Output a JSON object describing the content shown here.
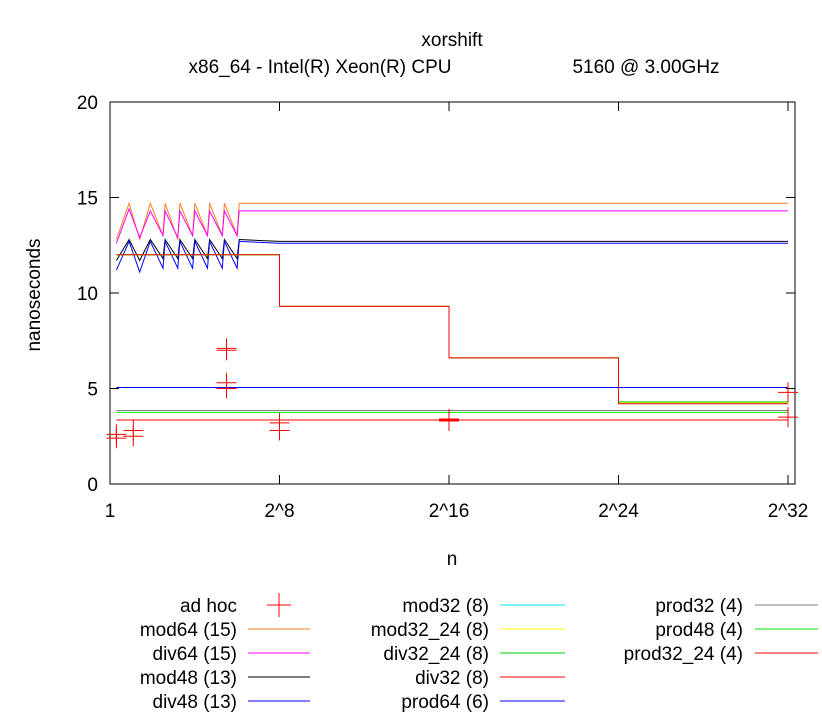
{
  "chart_data": {
    "type": "line",
    "title": "xorshift",
    "subtitle_left": "x86_64 - Intel(R) Xeon(R) CPU",
    "subtitle_right": "5160  @ 3.00GHz",
    "xlabel": "n",
    "ylabel": "nanoseconds",
    "x_scale": "log2",
    "xlim": [
      0,
      32
    ],
    "ylim": [
      0,
      20
    ],
    "x_ticks": [
      {
        "value": 0,
        "label": "1"
      },
      {
        "value": 8,
        "label": "2^8"
      },
      {
        "value": 16,
        "label": "2^16"
      },
      {
        "value": 24,
        "label": "2^24"
      },
      {
        "value": 32,
        "label": "2^32"
      }
    ],
    "y_ticks": [
      {
        "value": 0,
        "label": "0"
      },
      {
        "value": 5,
        "label": "5"
      },
      {
        "value": 10,
        "label": "10"
      },
      {
        "value": 15,
        "label": "15"
      },
      {
        "value": 20,
        "label": "20"
      }
    ],
    "legend_position": "bottom",
    "series": [
      {
        "name": "ad hoc",
        "color": "#ff0000",
        "style": "points",
        "points": [
          [
            0.3,
            2.4
          ],
          [
            0.3,
            2.6
          ],
          [
            1.1,
            2.5
          ],
          [
            1.1,
            2.8
          ],
          [
            5.5,
            7.0
          ],
          [
            5.5,
            7.1
          ],
          [
            5.5,
            5.0
          ],
          [
            5.5,
            5.3
          ],
          [
            8.0,
            2.8
          ],
          [
            8.0,
            3.2
          ],
          [
            16.0,
            3.3
          ],
          [
            16.0,
            3.4
          ],
          [
            32.0,
            3.5
          ],
          [
            32.0,
            4.8
          ]
        ]
      },
      {
        "name": "mod64 (15)",
        "color": "#ff7f27",
        "style": "line",
        "points": [
          [
            0.3,
            12.8
          ],
          [
            0.9,
            14.7
          ],
          [
            1.4,
            12.8
          ],
          [
            1.9,
            14.7
          ],
          [
            2.5,
            13.0
          ],
          [
            2.6,
            14.7
          ],
          [
            3.2,
            12.8
          ],
          [
            3.3,
            14.7
          ],
          [
            3.9,
            13.0
          ],
          [
            4.0,
            14.7
          ],
          [
            4.6,
            13.0
          ],
          [
            4.7,
            14.7
          ],
          [
            5.3,
            13.0
          ],
          [
            5.4,
            14.7
          ],
          [
            6.0,
            13.0
          ],
          [
            6.1,
            14.7
          ],
          [
            8.0,
            14.7
          ],
          [
            32.0,
            14.7
          ]
        ]
      },
      {
        "name": "div64 (15)",
        "color": "#ff00ff",
        "style": "line",
        "points": [
          [
            0.3,
            12.6
          ],
          [
            0.9,
            14.4
          ],
          [
            1.4,
            12.9
          ],
          [
            1.9,
            14.3
          ],
          [
            2.5,
            13.0
          ],
          [
            2.6,
            14.3
          ],
          [
            3.2,
            12.9
          ],
          [
            3.3,
            14.3
          ],
          [
            3.9,
            13.0
          ],
          [
            4.0,
            14.3
          ],
          [
            4.6,
            13.0
          ],
          [
            4.7,
            14.3
          ],
          [
            5.3,
            13.0
          ],
          [
            5.4,
            14.3
          ],
          [
            6.0,
            13.0
          ],
          [
            6.1,
            14.3
          ],
          [
            8.0,
            14.3
          ],
          [
            32.0,
            14.3
          ]
        ]
      },
      {
        "name": "mod48 (13)",
        "color": "#000000",
        "style": "line",
        "points": [
          [
            0.3,
            11.7
          ],
          [
            0.9,
            12.8
          ],
          [
            1.4,
            11.7
          ],
          [
            1.9,
            12.8
          ],
          [
            2.5,
            11.8
          ],
          [
            2.6,
            12.8
          ],
          [
            3.2,
            11.8
          ],
          [
            3.3,
            12.8
          ],
          [
            3.9,
            11.8
          ],
          [
            4.0,
            12.8
          ],
          [
            4.6,
            11.8
          ],
          [
            4.7,
            12.8
          ],
          [
            5.3,
            11.8
          ],
          [
            5.4,
            12.8
          ],
          [
            6.0,
            11.8
          ],
          [
            6.1,
            12.8
          ],
          [
            8.0,
            12.7
          ],
          [
            32.0,
            12.7
          ]
        ]
      },
      {
        "name": "div48 (13)",
        "color": "#0000ff",
        "style": "line",
        "points": [
          [
            0.3,
            11.2
          ],
          [
            0.9,
            12.7
          ],
          [
            1.4,
            11.1
          ],
          [
            1.9,
            12.7
          ],
          [
            2.5,
            11.3
          ],
          [
            2.6,
            12.7
          ],
          [
            3.2,
            11.3
          ],
          [
            3.3,
            12.7
          ],
          [
            3.9,
            11.3
          ],
          [
            4.0,
            12.7
          ],
          [
            4.6,
            11.3
          ],
          [
            4.7,
            12.7
          ],
          [
            5.3,
            11.3
          ],
          [
            5.4,
            12.7
          ],
          [
            6.0,
            11.3
          ],
          [
            6.1,
            12.7
          ],
          [
            8.0,
            12.6
          ],
          [
            32.0,
            12.6
          ]
        ]
      },
      {
        "name": "mod32 (8)",
        "color": "#00e5ee",
        "style": "line",
        "points": [
          [
            0.3,
            12.0
          ],
          [
            8.0,
            12.0
          ],
          [
            8.0,
            9.3
          ],
          [
            16.0,
            9.3
          ],
          [
            16.0,
            6.6
          ],
          [
            24.0,
            6.6
          ],
          [
            24.0,
            4.25
          ],
          [
            32.0,
            4.25
          ]
        ]
      },
      {
        "name": "mod32_24 (8)",
        "color": "#ffff00",
        "style": "line",
        "points": [
          [
            0.3,
            12.0
          ],
          [
            8.0,
            12.0
          ],
          [
            8.0,
            9.3
          ],
          [
            16.0,
            9.3
          ],
          [
            16.0,
            6.6
          ],
          [
            24.0,
            6.6
          ],
          [
            24.0,
            4.25
          ],
          [
            32.0,
            4.25
          ]
        ]
      },
      {
        "name": "div32_24 (8)",
        "color": "#00cc00",
        "style": "line",
        "points": [
          [
            0.3,
            12.0
          ],
          [
            8.0,
            12.0
          ],
          [
            8.0,
            9.3
          ],
          [
            16.0,
            9.3
          ],
          [
            16.0,
            6.6
          ],
          [
            24.0,
            6.6
          ],
          [
            24.0,
            4.3
          ],
          [
            32.0,
            4.3
          ]
        ]
      },
      {
        "name": "div32 (8)",
        "color": "#ff0000",
        "style": "line",
        "points": [
          [
            0.3,
            12.0
          ],
          [
            8.0,
            12.0
          ],
          [
            8.0,
            9.3
          ],
          [
            16.0,
            9.3
          ],
          [
            16.0,
            6.6
          ],
          [
            24.0,
            6.6
          ],
          [
            24.0,
            4.2
          ],
          [
            32.0,
            4.2
          ]
        ]
      },
      {
        "name": "prod64 (6)",
        "color": "#0000ff",
        "style": "line",
        "points": [
          [
            0.3,
            5.05
          ],
          [
            32.0,
            5.05
          ]
        ]
      },
      {
        "name": "prod32 (4)",
        "color": "#808080",
        "style": "line",
        "points": [
          [
            0.3,
            3.85
          ],
          [
            32.0,
            3.85
          ]
        ]
      },
      {
        "name": "prod48 (4)",
        "color": "#00ee00",
        "style": "line",
        "points": [
          [
            0.3,
            3.75
          ],
          [
            32.0,
            3.75
          ]
        ]
      },
      {
        "name": "prod32_24 (4)",
        "color": "#ff0000",
        "style": "line",
        "points": [
          [
            0.3,
            3.35
          ],
          [
            32.0,
            3.35
          ]
        ]
      }
    ]
  }
}
